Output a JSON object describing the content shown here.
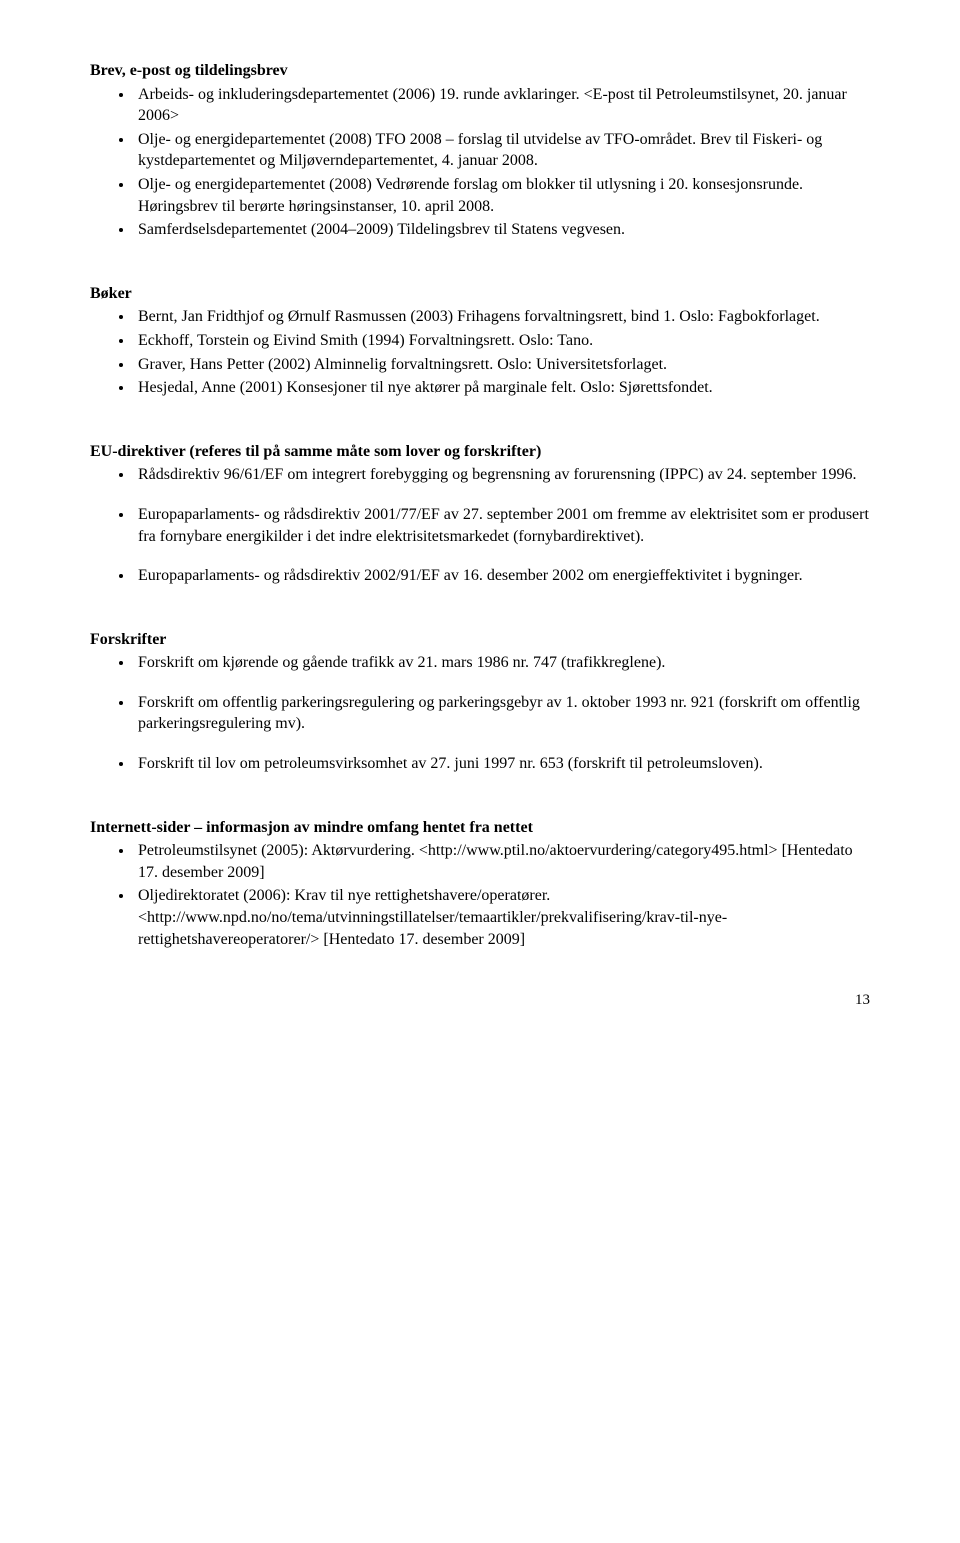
{
  "sections": {
    "brev": {
      "title": "Brev, e-post og tildelingsbrev",
      "items": [
        "Arbeids- og inkluderingsdepartementet (2006) 19. runde avklaringer. <E-post til Petroleumstilsynet, 20. januar 2006>",
        "Olje- og energidepartementet (2008) TFO 2008 – forslag til utvidelse av TFO-området. Brev til Fiskeri- og kystdepartementet og Miljøverndepartementet, 4. januar 2008.",
        "Olje- og energidepartementet (2008) Vedrørende forslag om blokker til utlysning i 20. konsesjonsrunde. Høringsbrev til berørte høringsinstanser, 10. april 2008.",
        "Samferdselsdepartementet (2004–2009) Tildelingsbrev til Statens vegvesen."
      ]
    },
    "boker": {
      "title": "Bøker",
      "items": [
        "Bernt, Jan Fridthjof og Ørnulf Rasmussen (2003) Frihagens forvaltningsrett, bind 1. Oslo: Fagbokforlaget.",
        "Eckhoff, Torstein og Eivind Smith (1994) Forvaltningsrett. Oslo: Tano.",
        "Graver, Hans Petter (2002) Alminnelig forvaltningsrett. Oslo: Universitetsforlaget.",
        "Hesjedal, Anne (2001) Konsesjoner til nye aktører på marginale felt. Oslo: Sjørettsfondet."
      ]
    },
    "eu": {
      "title": "EU-direktiver (referes til på samme måte som lover og forskrifter)",
      "items": [
        "Rådsdirektiv 96/61/EF om integrert forebygging og begrensning av forurensning (IPPC) av 24. september 1996.",
        "Europaparlaments- og rådsdirektiv 2001/77/EF av 27. september 2001 om fremme av elektrisitet som er produsert fra fornybare energikilder i det indre elektrisitetsmarkedet (fornybardirektivet).",
        "Europaparlaments- og rådsdirektiv 2002/91/EF av 16. desember 2002 om energieffektivitet i bygninger."
      ]
    },
    "forskrifter": {
      "title": "Forskrifter",
      "items": [
        "Forskrift om kjørende og gående trafikk av 21. mars 1986 nr. 747 (trafikkreglene).",
        "Forskrift om offentlig parkeringsregulering og parkeringsgebyr av 1. oktober 1993 nr. 921 (forskrift om offentlig parkeringsregulering mv).",
        "Forskrift til lov om petroleumsvirksomhet av 27. juni 1997 nr. 653 (forskrift til petroleumsloven)."
      ]
    },
    "internett": {
      "title": "Internett-sider – informasjon av mindre omfang hentet fra nettet",
      "items": [
        "Petroleumstilsynet (2005): Aktørvurdering. <http://www.ptil.no/aktoervurdering/category495.html> [Hentedato 17. desember 2009]",
        "Oljedirektoratet (2006): Krav til nye rettighetshavere/operatører. <http://www.npd.no/no/tema/utvinningstillatelser/temaartikler/prekvalifisering/krav-til-nye-rettighetshavereoperatorer/> [Hentedato 17. desember 2009]"
      ]
    }
  },
  "pageNumber": "13"
}
